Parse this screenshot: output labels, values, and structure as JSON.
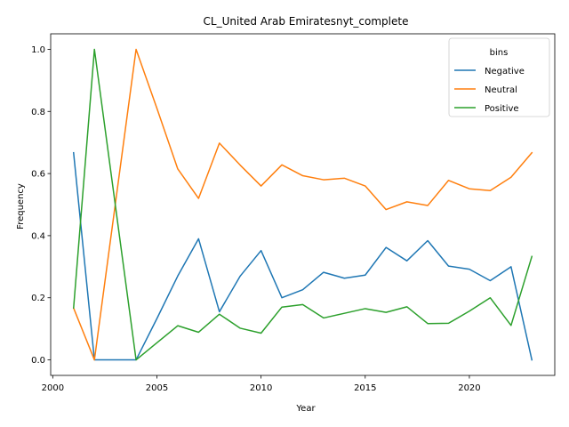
{
  "chart_data": {
    "type": "line",
    "title": "CL_United Arab Emiratesnyt_complete",
    "xlabel": "Year",
    "ylabel": "Frequency",
    "xlim": [
      1999.9,
      2024.1
    ],
    "ylim": [
      -0.05,
      1.05
    ],
    "xticks": [
      2000,
      2005,
      2010,
      2015,
      2020
    ],
    "yticks": [
      0.0,
      0.2,
      0.4,
      0.6,
      0.8,
      1.0
    ],
    "ytick_labels": [
      "0.0",
      "0.2",
      "0.4",
      "0.6",
      "0.8",
      "1.0"
    ],
    "legend": {
      "title": "bins",
      "position": "top-right"
    },
    "grid": false,
    "x": [
      2001,
      2002,
      2003,
      2004,
      2005,
      2006,
      2007,
      2008,
      2009,
      2010,
      2011,
      2012,
      2013,
      2014,
      2015,
      2016,
      2017,
      2018,
      2019,
      2020,
      2021,
      2022,
      2023
    ],
    "series": [
      {
        "name": "Negative",
        "color": "#1f77b4",
        "values": [
          0.667,
          0.0,
          0.0,
          0.0,
          0.133,
          0.27,
          0.39,
          0.155,
          0.27,
          0.352,
          0.2,
          0.226,
          0.282,
          0.263,
          0.273,
          0.362,
          0.319,
          0.384,
          0.302,
          0.292,
          0.255,
          0.3,
          0.0
        ]
      },
      {
        "name": "Neutral",
        "color": "#ff7f0e",
        "values": [
          0.167,
          0.0,
          0.5,
          1.0,
          0.81,
          0.615,
          0.52,
          0.698,
          0.627,
          0.56,
          0.628,
          0.593,
          0.58,
          0.585,
          0.56,
          0.484,
          0.509,
          0.497,
          0.578,
          0.551,
          0.545,
          0.588,
          0.667
        ]
      },
      {
        "name": "Positive",
        "color": "#2ca02c",
        "values": [
          0.167,
          1.0,
          0.5,
          0.0,
          0.055,
          0.11,
          0.089,
          0.147,
          0.102,
          0.086,
          0.17,
          0.178,
          0.135,
          0.15,
          0.165,
          0.153,
          0.171,
          0.117,
          0.118,
          0.157,
          0.2,
          0.111,
          0.333
        ]
      }
    ]
  }
}
